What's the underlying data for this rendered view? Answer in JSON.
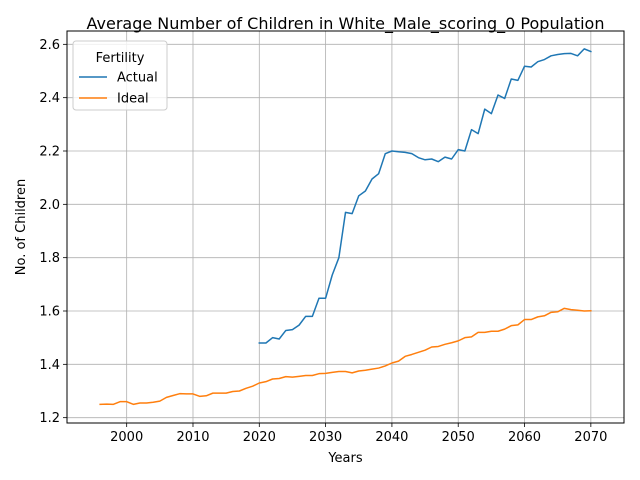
{
  "chart_data": {
    "type": "line",
    "title": "Average Number of Children in White_Male_scoring_0 Population",
    "xlabel": "Years",
    "ylabel": "No. of Children",
    "xlim": [
      1991,
      2075
    ],
    "ylim": [
      1.18,
      2.65
    ],
    "xticks": [
      2000,
      2010,
      2020,
      2030,
      2040,
      2050,
      2060,
      2070
    ],
    "yticks": [
      1.2,
      1.4,
      1.6,
      1.8,
      2.0,
      2.2,
      2.4,
      2.6
    ],
    "grid": true,
    "legend": {
      "title": "Fertility",
      "position": "top-left"
    },
    "series": [
      {
        "name": "Actual",
        "color": "#1f77b4",
        "x": [
          2020,
          2021,
          2022,
          2023,
          2024,
          2025,
          2026,
          2027,
          2028,
          2029,
          2030,
          2031,
          2032,
          2033,
          2034,
          2035,
          2036,
          2037,
          2038,
          2039,
          2040,
          2041,
          2042,
          2043,
          2044,
          2045,
          2046,
          2047,
          2048,
          2049,
          2050,
          2051,
          2052,
          2053,
          2054,
          2055,
          2056,
          2057,
          2058,
          2059,
          2060,
          2061,
          2062,
          2063,
          2064,
          2065,
          2066,
          2067,
          2068,
          2069,
          2070
        ],
        "y": [
          1.48,
          1.48,
          1.5,
          1.495,
          1.527,
          1.53,
          1.547,
          1.58,
          1.58,
          1.648,
          1.648,
          1.735,
          1.8,
          1.97,
          1.965,
          2.032,
          2.05,
          2.095,
          2.115,
          2.19,
          2.2,
          2.197,
          2.195,
          2.19,
          2.175,
          2.167,
          2.17,
          2.16,
          2.177,
          2.17,
          2.205,
          2.2,
          2.28,
          2.265,
          2.357,
          2.34,
          2.41,
          2.397,
          2.47,
          2.465,
          2.518,
          2.515,
          2.535,
          2.543,
          2.557,
          2.562,
          2.565,
          2.566,
          2.557,
          2.583,
          2.573
        ]
      },
      {
        "name": "Ideal",
        "color": "#ff7f0e",
        "x": [
          1996,
          1997,
          1998,
          1999,
          2000,
          2001,
          2002,
          2003,
          2004,
          2005,
          2006,
          2007,
          2008,
          2009,
          2010,
          2011,
          2012,
          2013,
          2014,
          2015,
          2016,
          2017,
          2018,
          2019,
          2020,
          2021,
          2022,
          2023,
          2024,
          2025,
          2026,
          2027,
          2028,
          2029,
          2030,
          2031,
          2032,
          2033,
          2034,
          2035,
          2036,
          2037,
          2038,
          2039,
          2040,
          2041,
          2042,
          2043,
          2044,
          2045,
          2046,
          2047,
          2048,
          2049,
          2050,
          2051,
          2052,
          2053,
          2054,
          2055,
          2056,
          2057,
          2058,
          2059,
          2060,
          2061,
          2062,
          2063,
          2064,
          2065,
          2066,
          2067,
          2068,
          2069,
          2070
        ],
        "y": [
          1.25,
          1.251,
          1.25,
          1.26,
          1.26,
          1.25,
          1.255,
          1.255,
          1.258,
          1.262,
          1.276,
          1.283,
          1.29,
          1.289,
          1.289,
          1.28,
          1.282,
          1.292,
          1.292,
          1.292,
          1.298,
          1.3,
          1.31,
          1.318,
          1.33,
          1.335,
          1.345,
          1.347,
          1.354,
          1.352,
          1.355,
          1.358,
          1.358,
          1.365,
          1.366,
          1.37,
          1.373,
          1.373,
          1.368,
          1.375,
          1.378,
          1.382,
          1.386,
          1.394,
          1.405,
          1.412,
          1.43,
          1.437,
          1.445,
          1.453,
          1.465,
          1.467,
          1.475,
          1.481,
          1.488,
          1.5,
          1.503,
          1.52,
          1.52,
          1.524,
          1.524,
          1.532,
          1.545,
          1.548,
          1.568,
          1.568,
          1.578,
          1.582,
          1.595,
          1.597,
          1.61,
          1.605,
          1.603,
          1.6,
          1.601
        ]
      }
    ]
  }
}
